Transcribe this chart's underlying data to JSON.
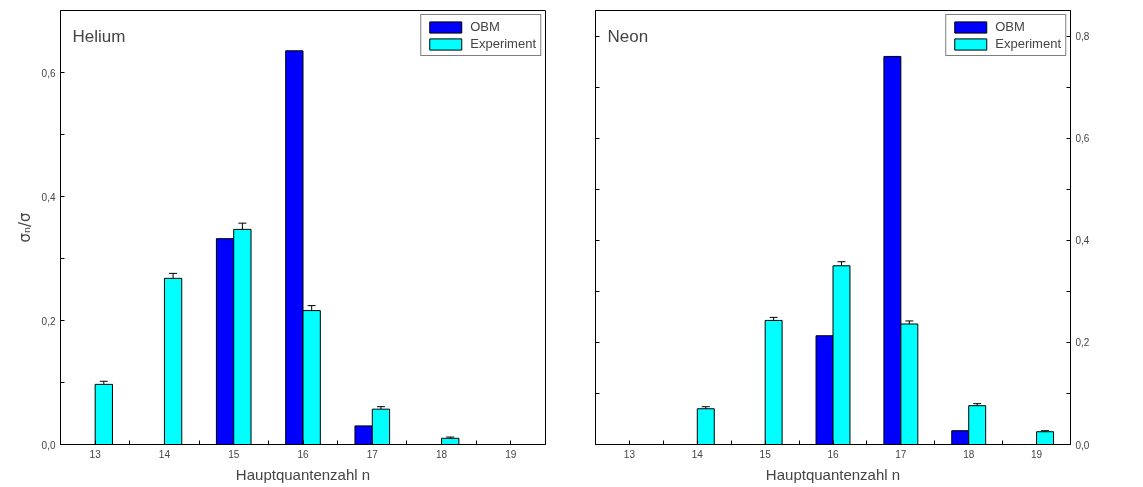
{
  "chart_data": [
    {
      "type": "bar",
      "title": "Helium",
      "xlabel": "Hauptquantenzahl n",
      "ylabel": "σₙ/σ",
      "x": [
        13,
        14,
        15,
        16,
        17,
        18
      ],
      "series": [
        {
          "name": "OBM",
          "color": "#0000ff",
          "values": [
            null,
            null,
            0.332,
            0.635,
            0.03,
            null
          ]
        },
        {
          "name": "Experiment",
          "color": "#00ffff",
          "values": [
            0.097,
            0.268,
            0.347,
            0.216,
            0.057,
            0.01
          ],
          "errors": [
            0.005,
            0.008,
            0.01,
            0.008,
            0.004,
            0.002
          ]
        }
      ],
      "xlim": [
        12.5,
        19.5
      ],
      "xticks": [
        13,
        {
          "value": 13.5,
          "label": null
        },
        14,
        {
          "value": 14.5,
          "label": null
        },
        15,
        {
          "value": 15.5,
          "label": null
        },
        16,
        {
          "value": 16.5,
          "label": null
        },
        17,
        {
          "value": 17.5,
          "label": null
        },
        18,
        {
          "value": 18.5,
          "label": null
        },
        19
      ],
      "ylim": [
        0,
        0.7
      ],
      "yticks": [
        {
          "value": 0,
          "label": "0,0"
        },
        {
          "value": 0.1,
          "label": null
        },
        {
          "value": 0.2,
          "label": "0,2"
        },
        {
          "value": 0.3,
          "label": null
        },
        {
          "value": 0.4,
          "label": "0,4"
        },
        {
          "value": 0.5,
          "label": null
        },
        {
          "value": 0.6,
          "label": "0,6"
        }
      ],
      "legend": "top right",
      "grid": false
    },
    {
      "type": "bar",
      "title": "Neon",
      "xlabel": "Hauptquantenzahl n",
      "x": [
        14,
        15,
        16,
        17,
        18,
        19
      ],
      "series": [
        {
          "name": "OBM",
          "color": "#0000ff",
          "axis": "y2",
          "values": [
            null,
            null,
            0.213,
            0.76,
            0.027,
            null
          ]
        },
        {
          "name": "Experiment",
          "color": "#00ffff",
          "axis": "y2",
          "values": [
            0.07,
            0.243,
            0.35,
            0.236,
            0.076,
            0.025
          ],
          "errors": [
            0.004,
            0.006,
            0.008,
            0.006,
            0.004,
            0.002
          ]
        }
      ],
      "xlim": [
        12.5,
        19.5
      ],
      "xticks": [
        13,
        {
          "value": 13.5,
          "label": null
        },
        14,
        {
          "value": 14.5,
          "label": null
        },
        15,
        {
          "value": 15.5,
          "label": null
        },
        16,
        {
          "value": 16.5,
          "label": null
        },
        17,
        {
          "value": 17.5,
          "label": null
        },
        18,
        {
          "value": 18.5,
          "label": null
        },
        19
      ],
      "y2lim": [
        0,
        0.85
      ],
      "y2ticks": [
        {
          "value": 0,
          "label": "0,0"
        },
        {
          "value": 0.1,
          "label": null
        },
        {
          "value": 0.2,
          "label": "0,2"
        },
        {
          "value": 0.3,
          "label": null
        },
        {
          "value": 0.4,
          "label": "0,4"
        },
        {
          "value": 0.5,
          "label": null
        },
        {
          "value": 0.6,
          "label": "0,6"
        },
        {
          "value": 0.7,
          "label": null
        },
        {
          "value": 0.8,
          "label": "0,8"
        }
      ],
      "legend": "top right",
      "grid": false
    }
  ]
}
